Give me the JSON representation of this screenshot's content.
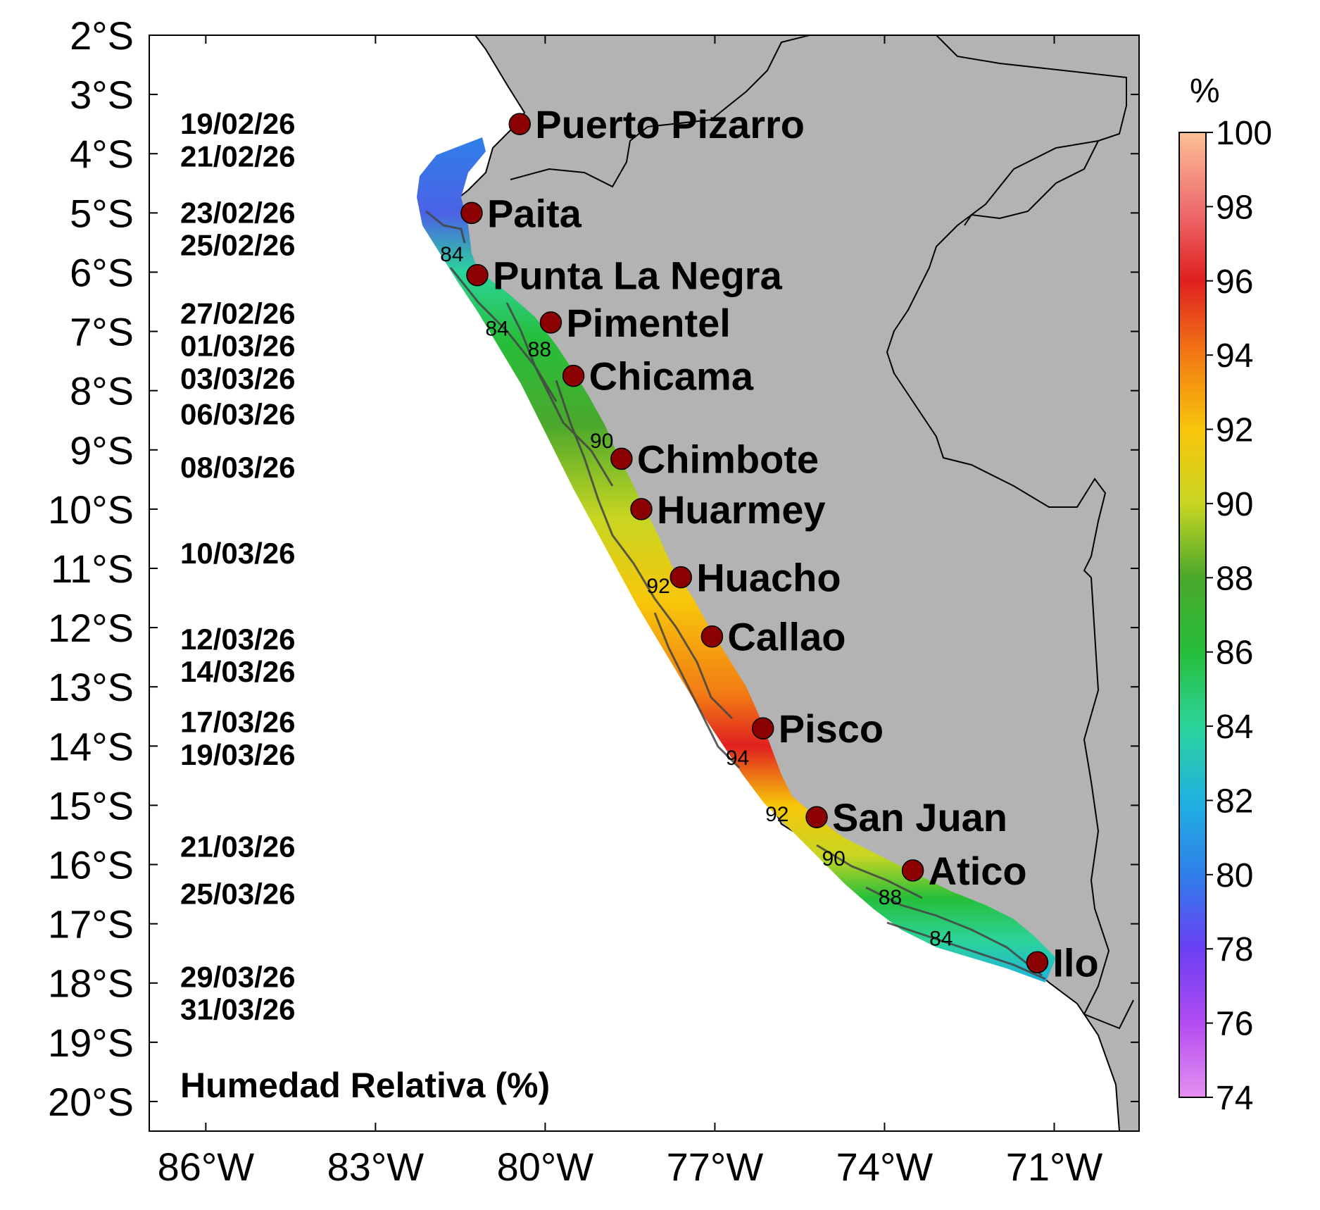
{
  "map": {
    "title": "Humedad Relativa (%)",
    "lon_range": [
      -87,
      -69.5
    ],
    "lat_range": [
      -20.5,
      -2
    ],
    "lon_ticks": [
      {
        "value": -86,
        "label": "86°W"
      },
      {
        "value": -83,
        "label": "83°W"
      },
      {
        "value": -80,
        "label": "80°W"
      },
      {
        "value": -77,
        "label": "77°W"
      },
      {
        "value": -74,
        "label": "74°W"
      },
      {
        "value": -71,
        "label": "71°W"
      }
    ],
    "lat_ticks": [
      {
        "value": -2,
        "label": "2°S"
      },
      {
        "value": -3,
        "label": "3°S"
      },
      {
        "value": -4,
        "label": "4°S"
      },
      {
        "value": -5,
        "label": "5°S"
      },
      {
        "value": -6,
        "label": "6°S"
      },
      {
        "value": -7,
        "label": "7°S"
      },
      {
        "value": -8,
        "label": "8°S"
      },
      {
        "value": -9,
        "label": "9°S"
      },
      {
        "value": -10,
        "label": "10°S"
      },
      {
        "value": -11,
        "label": "11°S"
      },
      {
        "value": -12,
        "label": "12°S"
      },
      {
        "value": -13,
        "label": "13°S"
      },
      {
        "value": -14,
        "label": "14°S"
      },
      {
        "value": -15,
        "label": "15°S"
      },
      {
        "value": -16,
        "label": "16°S"
      },
      {
        "value": -17,
        "label": "17°S"
      },
      {
        "value": -18,
        "label": "18°S"
      },
      {
        "value": -19,
        "label": "19°S"
      },
      {
        "value": -20,
        "label": "20°S"
      }
    ],
    "land_color": "#b3b3b3",
    "ocean_color": "#ffffff",
    "station_color": "#8b0000",
    "dates": [
      {
        "label": "19/02/26",
        "lat": -3.5
      },
      {
        "label": "21/02/26",
        "lat": -4.05
      },
      {
        "label": "23/02/26",
        "lat": -5.0
      },
      {
        "label": "25/02/26",
        "lat": -5.55
      },
      {
        "label": "27/02/26",
        "lat": -6.7
      },
      {
        "label": "01/03/26",
        "lat": -7.25
      },
      {
        "label": "03/03/26",
        "lat": -7.8
      },
      {
        "label": "06/03/26",
        "lat": -8.4
      },
      {
        "label": "08/03/26",
        "lat": -9.3
      },
      {
        "label": "10/03/26",
        "lat": -10.75
      },
      {
        "label": "12/03/26",
        "lat": -12.2
      },
      {
        "label": "14/03/26",
        "lat": -12.75
      },
      {
        "label": "17/03/26",
        "lat": -13.6
      },
      {
        "label": "19/03/26",
        "lat": -14.15
      },
      {
        "label": "21/03/26",
        "lat": -15.7
      },
      {
        "label": "25/03/26",
        "lat": -16.5
      },
      {
        "label": "29/03/26",
        "lat": -17.9
      },
      {
        "label": "31/03/26",
        "lat": -18.45
      }
    ],
    "stations": [
      {
        "name": "Puerto Pizarro",
        "lon": -80.45,
        "lat": -3.5
      },
      {
        "name": "Paita",
        "lon": -81.3,
        "lat": -5.0
      },
      {
        "name": "Punta La Negra",
        "lon": -81.2,
        "lat": -6.05
      },
      {
        "name": "Pimentel",
        "lon": -79.9,
        "lat": -6.85
      },
      {
        "name": "Chicama",
        "lon": -79.5,
        "lat": -7.75
      },
      {
        "name": "Chimbote",
        "lon": -78.65,
        "lat": -9.15
      },
      {
        "name": "Huarmey",
        "lon": -78.3,
        "lat": -10.0
      },
      {
        "name": "Huacho",
        "lon": -77.6,
        "lat": -11.15
      },
      {
        "name": "Callao",
        "lon": -77.05,
        "lat": -12.15
      },
      {
        "name": "Pisco",
        "lon": -76.15,
        "lat": -13.7
      },
      {
        "name": "San Juan",
        "lon": -75.2,
        "lat": -15.2
      },
      {
        "name": "Atico",
        "lon": -73.5,
        "lat": -16.1
      },
      {
        "name": "Ilo",
        "lon": -71.3,
        "lat": -17.65
      }
    ],
    "contour_labels": [
      {
        "text": "84",
        "lon": -81.65,
        "lat": -5.7
      },
      {
        "text": "84",
        "lon": -80.85,
        "lat": -6.95
      },
      {
        "text": "88",
        "lon": -80.1,
        "lat": -7.3
      },
      {
        "text": "90",
        "lon": -79.0,
        "lat": -8.85
      },
      {
        "text": "92",
        "lon": -78.0,
        "lat": -11.3
      },
      {
        "text": "94",
        "lon": -76.6,
        "lat": -14.2
      },
      {
        "text": "92",
        "lon": -75.9,
        "lat": -15.15
      },
      {
        "text": "90",
        "lon": -74.9,
        "lat": -15.9
      },
      {
        "text": "88",
        "lon": -73.9,
        "lat": -16.55
      },
      {
        "text": "84",
        "lon": -73.0,
        "lat": -17.25
      }
    ]
  },
  "colorbar": {
    "title": "%",
    "min": 74,
    "max": 100,
    "ticks": [
      "100",
      "98",
      "96",
      "94",
      "92",
      "90",
      "88",
      "86",
      "84",
      "82",
      "80",
      "78",
      "76",
      "74"
    ],
    "stops": [
      {
        "value": 74,
        "color": "#e690f0"
      },
      {
        "value": 76,
        "color": "#b24cf2"
      },
      {
        "value": 78,
        "color": "#6a3ff2"
      },
      {
        "value": 80,
        "color": "#2f7fe8"
      },
      {
        "value": 82,
        "color": "#1fb2e0"
      },
      {
        "value": 84,
        "color": "#2cd49a"
      },
      {
        "value": 86,
        "color": "#26be3a"
      },
      {
        "value": 88,
        "color": "#4aa82c"
      },
      {
        "value": 90,
        "color": "#c8d622"
      },
      {
        "value": 92,
        "color": "#f7c60a"
      },
      {
        "value": 94,
        "color": "#f27a14"
      },
      {
        "value": 96,
        "color": "#e02020"
      },
      {
        "value": 98,
        "color": "#ee7070"
      },
      {
        "value": 100,
        "color": "#fcc096"
      }
    ]
  }
}
